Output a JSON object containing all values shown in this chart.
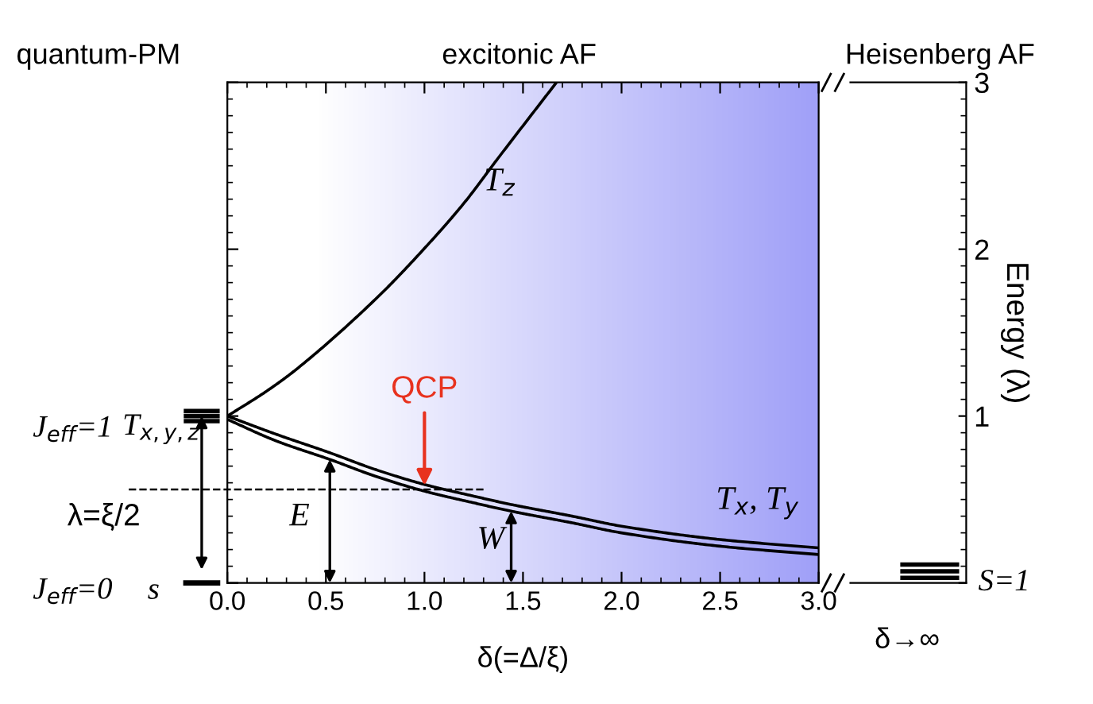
{
  "chart_data": {
    "type": "line",
    "xlabel": "δ(=Δ/ξ)",
    "ylabel": "Energy (λ)",
    "xlim": [
      0,
      3
    ],
    "ylim": [
      0,
      3
    ],
    "xticks": [
      {
        "value": 0,
        "label": "0.0"
      },
      {
        "value": 0.5,
        "label": "0.5"
      },
      {
        "value": 1,
        "label": "1.0"
      },
      {
        "value": 1.5,
        "label": "1.5"
      },
      {
        "value": 2,
        "label": "2.0"
      },
      {
        "value": 2.5,
        "label": "2.5"
      },
      {
        "value": 3,
        "label": "3.0"
      }
    ],
    "yticks": [
      {
        "value": 0,
        "label": null
      },
      1,
      2,
      3
    ],
    "series": [
      {
        "color": "#000000",
        "x": [
          0,
          0.2,
          0.35,
          0.76,
          1.05,
          1.21,
          1.37,
          1.67
        ],
        "values": [
          1,
          1.15,
          1.28,
          1.71,
          2.07,
          2.29,
          2.54,
          3.0
        ]
      },
      {
        "color": "#000000",
        "x": [
          0,
          0.25,
          0.52,
          0.75,
          1.0,
          1.25,
          1.44,
          1.75,
          2.0,
          2.5,
          3.0
        ],
        "values": [
          1.0,
          0.89,
          0.78,
          0.68,
          0.59,
          0.52,
          0.47,
          0.4,
          0.34,
          0.26,
          0.21
        ]
      },
      {
        "color": "#000000",
        "x": [
          0,
          0.25,
          0.52,
          0.75,
          1.0,
          1.25,
          1.44,
          1.75,
          2.0,
          2.5,
          3.0
        ],
        "values": [
          0.98,
          0.85,
          0.74,
          0.64,
          0.55,
          0.48,
          0.43,
          0.36,
          0.3,
          0.22,
          0.17
        ]
      }
    ],
    "ref_lines": [
      {
        "axis": "y",
        "value": 0.56,
        "line_style": "dashed",
        "color": "#000000"
      }
    ],
    "annotations": [
      "quantum-PM",
      "excitonic AF",
      "Heisenberg AF",
      {
        "text": "T$_{z}$",
        "x": 1.3,
        "y": 2.4
      },
      "T$_{x}$, T$_{y}$",
      {
        "text": "QCP",
        "x": 1.0,
        "y": 0.57
      },
      "E",
      "W",
      "J$_{eff}$=1",
      "T$_{x,y,z}$",
      "λ=ξ/2",
      "J$_{eff}$=0",
      "s",
      "S=1",
      "δ→∞"
    ],
    "grid": false,
    "legend": false,
    "marker": "none"
  }
}
